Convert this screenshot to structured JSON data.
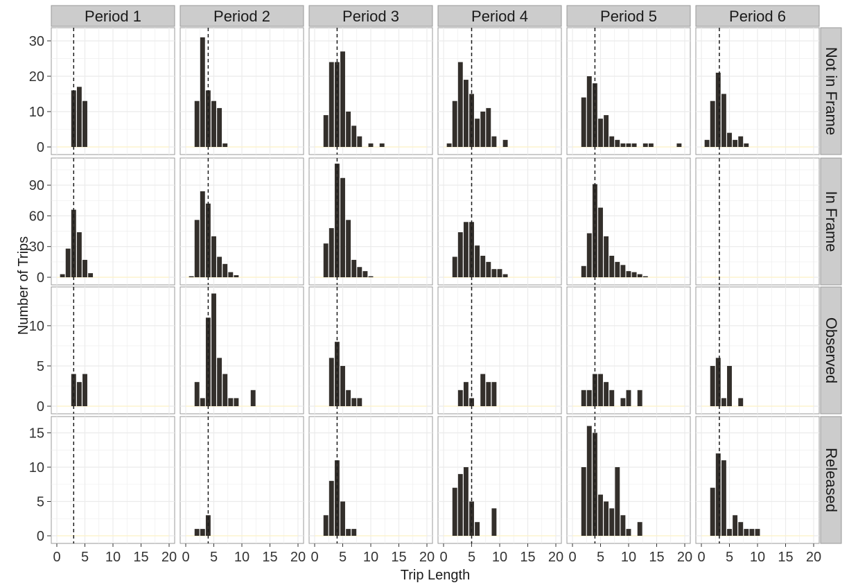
{
  "chart_data": {
    "type": "bar",
    "subtype": "faceted-histogram",
    "xlabel": "Trip Length",
    "ylabel": "Number of Trips",
    "columns": [
      "Period 1",
      "Period 2",
      "Period 3",
      "Period 4",
      "Period 5",
      "Period 6"
    ],
    "rows": [
      "Not in Frame",
      "In Frame",
      "Observed",
      "Released"
    ],
    "xlim": [
      0,
      20
    ],
    "x_ticks": [
      0,
      5,
      10,
      15,
      20
    ],
    "x_tick_labels": [
      "0",
      "5",
      "10",
      "15",
      "20"
    ],
    "bin_width": 1,
    "reference_line": {
      "style": "dashed",
      "x_by_period": [
        3.0,
        4.0,
        4.0,
        5.0,
        4.0,
        3.2
      ]
    },
    "row_ylim": [
      [
        0,
        33
      ],
      [
        0,
        114
      ],
      [
        0,
        14.5
      ],
      [
        0,
        17
      ]
    ],
    "row_y_ticks": [
      [
        0,
        10,
        20,
        30
      ],
      [
        0,
        30,
        60,
        90
      ],
      [
        0,
        5,
        10
      ],
      [
        0,
        5,
        10,
        15
      ]
    ],
    "grid": true,
    "colors": {
      "bar": "#332f2b",
      "panel_bg": "#ffffff",
      "grid": "#ebebeb",
      "strip_bg": "#cccccc",
      "border": "#999999",
      "reference_line": "#1a1a1a",
      "baseline": "#fff3c8"
    },
    "panels": [
      [
        {
          "x": [
            3,
            4,
            5
          ],
          "y": [
            16,
            17,
            13
          ]
        },
        {
          "x": [
            2,
            3,
            4,
            5,
            6,
            7,
            8
          ],
          "y": [
            13,
            31,
            16,
            13,
            11,
            1,
            0
          ]
        },
        {
          "x": [
            2,
            3,
            4,
            5,
            6,
            7,
            8,
            9,
            10,
            11,
            12
          ],
          "y": [
            9,
            24,
            24,
            27,
            10,
            6,
            3,
            0,
            1,
            0,
            1
          ]
        },
        {
          "x": [
            1,
            2,
            3,
            4,
            5,
            6,
            7,
            8,
            9,
            10,
            11
          ],
          "y": [
            1,
            13,
            24,
            19,
            15,
            8,
            10,
            11,
            3,
            0,
            2
          ]
        },
        {
          "x": [
            2,
            3,
            4,
            5,
            6,
            7,
            8,
            9,
            10,
            11,
            12,
            13,
            14,
            15,
            16,
            17,
            18,
            19
          ],
          "y": [
            14,
            20,
            18,
            8,
            9,
            3,
            2,
            1,
            1,
            1,
            0,
            1,
            1,
            0,
            0,
            0,
            0,
            1
          ]
        },
        {
          "x": [
            1,
            2,
            3,
            4,
            5,
            6,
            7,
            8
          ],
          "y": [
            2,
            13,
            21,
            15,
            4,
            2,
            3,
            1
          ]
        }
      ],
      [
        {
          "x": [
            1,
            2,
            3,
            4,
            5,
            6,
            7
          ],
          "y": [
            3,
            28,
            66,
            44,
            17,
            4,
            0
          ]
        },
        {
          "x": [
            1,
            2,
            3,
            4,
            5,
            6,
            7,
            8,
            9
          ],
          "y": [
            1,
            56,
            84,
            72,
            40,
            20,
            13,
            5,
            2
          ]
        },
        {
          "x": [
            2,
            3,
            4,
            5,
            6,
            7,
            8,
            9,
            10
          ],
          "y": [
            33,
            48,
            111,
            97,
            56,
            17,
            10,
            6,
            1
          ]
        },
        {
          "x": [
            2,
            3,
            4,
            5,
            6,
            7,
            8,
            9,
            10,
            11
          ],
          "y": [
            20,
            44,
            54,
            54,
            31,
            21,
            15,
            8,
            8,
            3
          ]
        },
        {
          "x": [
            2,
            3,
            4,
            5,
            6,
            7,
            8,
            9,
            10,
            11,
            12,
            13
          ],
          "y": [
            11,
            43,
            91,
            68,
            40,
            21,
            15,
            12,
            6,
            5,
            3,
            1
          ]
        },
        {
          "x": [],
          "y": []
        }
      ],
      [
        {
          "x": [
            3,
            4,
            5
          ],
          "y": [
            4,
            3,
            4
          ]
        },
        {
          "x": [
            2,
            3,
            4,
            5,
            6,
            7,
            8,
            9,
            10,
            11,
            12
          ],
          "y": [
            3,
            1,
            11,
            14,
            6,
            4,
            1,
            1,
            0,
            0,
            2
          ]
        },
        {
          "x": [
            3,
            4,
            5,
            6,
            7,
            8
          ],
          "y": [
            6,
            8,
            5,
            2,
            1,
            1
          ]
        },
        {
          "x": [
            3,
            4,
            5,
            6,
            7,
            8,
            9
          ],
          "y": [
            2,
            3,
            1,
            0,
            4,
            3,
            3
          ]
        },
        {
          "x": [
            2,
            3,
            4,
            5,
            6,
            7,
            8,
            9,
            10,
            11,
            12
          ],
          "y": [
            2,
            2,
            4,
            4,
            3,
            2,
            0,
            1,
            2,
            0,
            2
          ]
        },
        {
          "x": [
            2,
            3,
            4,
            5,
            6,
            7
          ],
          "y": [
            5,
            6,
            1,
            5,
            0,
            1
          ]
        }
      ],
      [
        {
          "x": [],
          "y": []
        },
        {
          "x": [
            2,
            3,
            4
          ],
          "y": [
            1,
            1,
            3
          ]
        },
        {
          "x": [
            2,
            3,
            4,
            5,
            6,
            7
          ],
          "y": [
            3,
            8,
            11,
            5,
            1,
            1
          ]
        },
        {
          "x": [
            2,
            3,
            4,
            5,
            6,
            7,
            8,
            9
          ],
          "y": [
            7,
            9,
            10,
            5,
            2,
            0,
            0,
            4
          ]
        },
        {
          "x": [
            2,
            3,
            4,
            5,
            6,
            7,
            8,
            9,
            10,
            11,
            12
          ],
          "y": [
            10,
            16,
            15,
            6,
            5,
            4,
            10,
            3,
            1,
            0,
            2
          ]
        },
        {
          "x": [
            2,
            3,
            4,
            5,
            6,
            7,
            8,
            9,
            10
          ],
          "y": [
            7,
            12,
            11,
            1,
            3,
            2,
            1,
            1,
            1
          ]
        }
      ]
    ]
  }
}
